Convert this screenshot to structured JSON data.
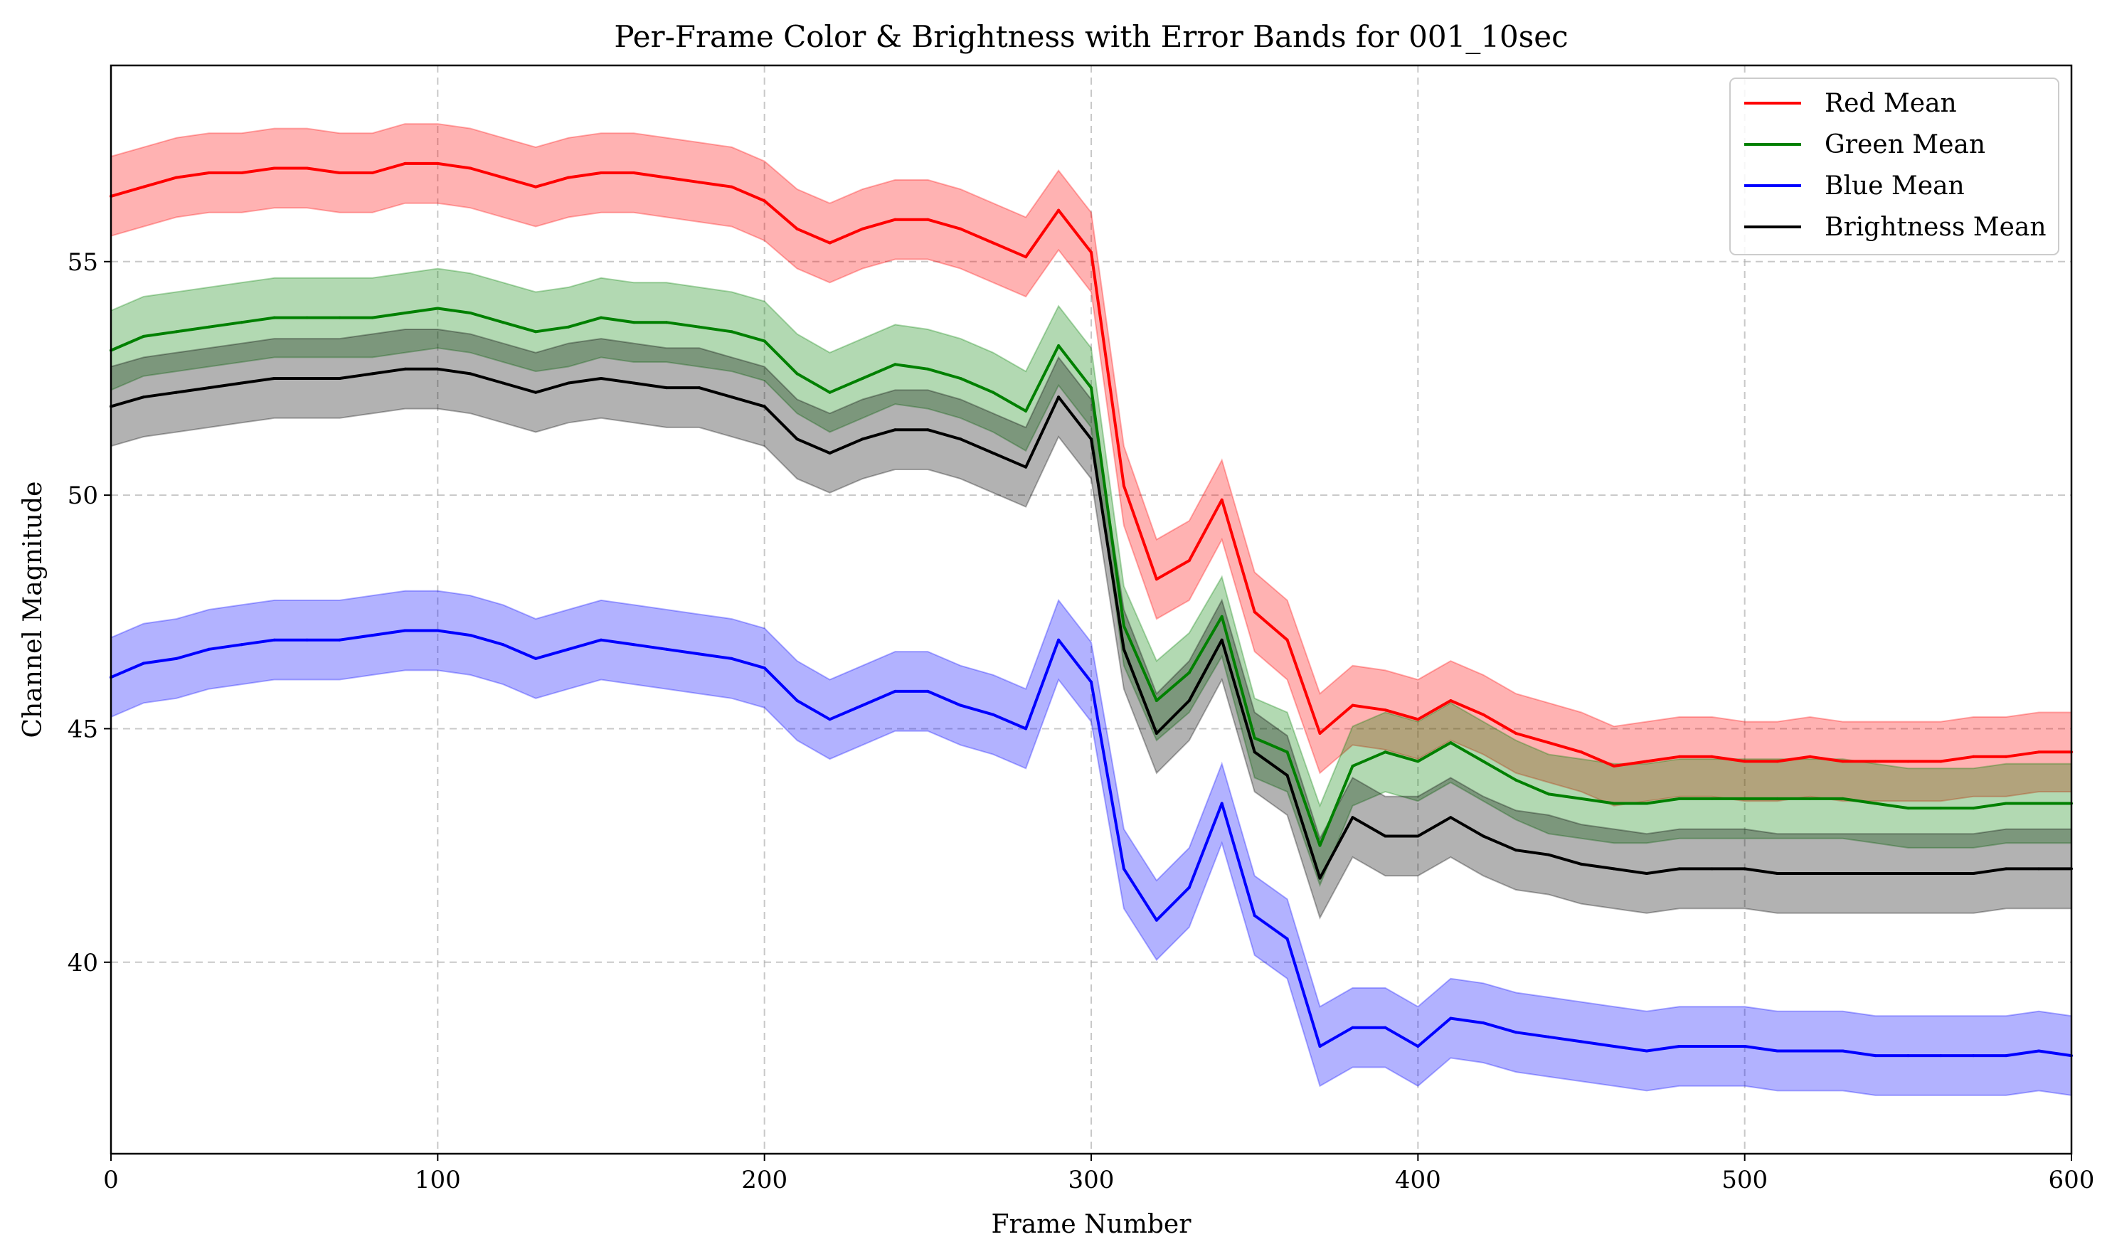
{
  "chart_data": {
    "type": "line",
    "title": "Per-Frame Color & Brightness with Error Bands for 001_10sec",
    "xlabel": "Frame Number",
    "ylabel": "Channel Magnitude",
    "xlim": [
      0,
      600
    ],
    "ylim": [
      35.9,
      59.2
    ],
    "x_ticks": [
      0,
      100,
      200,
      300,
      400,
      500,
      600
    ],
    "y_ticks": [
      40,
      45,
      50,
      55
    ],
    "grid": true,
    "legend_position": "top-right",
    "error_band_halfwidth": 0.85,
    "x": [
      0,
      10,
      20,
      30,
      40,
      50,
      60,
      70,
      80,
      90,
      100,
      110,
      120,
      130,
      140,
      150,
      160,
      170,
      180,
      190,
      200,
      210,
      220,
      230,
      240,
      250,
      260,
      270,
      280,
      290,
      300,
      310,
      320,
      330,
      340,
      350,
      360,
      370,
      380,
      390,
      400,
      410,
      420,
      430,
      440,
      450,
      460,
      470,
      480,
      490,
      500,
      510,
      520,
      530,
      540,
      550,
      560,
      570,
      580,
      590,
      600
    ],
    "series": [
      {
        "name": "Red Mean",
        "color": "#ff0000",
        "values": [
          56.4,
          56.6,
          56.8,
          56.9,
          56.9,
          57.0,
          57.0,
          56.9,
          56.9,
          57.1,
          57.1,
          57.0,
          56.8,
          56.6,
          56.8,
          56.9,
          56.9,
          56.8,
          56.7,
          56.6,
          56.3,
          55.7,
          55.4,
          55.7,
          55.9,
          55.9,
          55.7,
          55.4,
          55.1,
          56.1,
          55.2,
          50.2,
          48.2,
          48.6,
          49.9,
          47.5,
          46.9,
          44.9,
          45.5,
          45.4,
          45.2,
          45.6,
          45.3,
          44.9,
          44.7,
          44.5,
          44.2,
          44.3,
          44.4,
          44.4,
          44.3,
          44.3,
          44.4,
          44.3,
          44.3,
          44.3,
          44.3,
          44.4,
          44.4,
          44.5,
          44.5
        ]
      },
      {
        "name": "Green Mean",
        "color": "#008000",
        "values": [
          53.1,
          53.4,
          53.5,
          53.6,
          53.7,
          53.8,
          53.8,
          53.8,
          53.8,
          53.9,
          54.0,
          53.9,
          53.7,
          53.5,
          53.6,
          53.8,
          53.7,
          53.7,
          53.6,
          53.5,
          53.3,
          52.6,
          52.2,
          52.5,
          52.8,
          52.7,
          52.5,
          52.2,
          51.8,
          53.2,
          52.3,
          47.2,
          45.6,
          46.2,
          47.4,
          44.8,
          44.5,
          42.5,
          44.2,
          44.5,
          44.3,
          44.7,
          44.3,
          43.9,
          43.6,
          43.5,
          43.4,
          43.4,
          43.5,
          43.5,
          43.5,
          43.5,
          43.5,
          43.5,
          43.4,
          43.3,
          43.3,
          43.3,
          43.4,
          43.4,
          43.4
        ]
      },
      {
        "name": "Blue Mean",
        "color": "#0000ff",
        "values": [
          46.1,
          46.4,
          46.5,
          46.7,
          46.8,
          46.9,
          46.9,
          46.9,
          47.0,
          47.1,
          47.1,
          47.0,
          46.8,
          46.5,
          46.7,
          46.9,
          46.8,
          46.7,
          46.6,
          46.5,
          46.3,
          45.6,
          45.2,
          45.5,
          45.8,
          45.8,
          45.5,
          45.3,
          45.0,
          46.9,
          46.0,
          42.0,
          40.9,
          41.6,
          43.4,
          41.0,
          40.5,
          38.2,
          38.6,
          38.6,
          38.2,
          38.8,
          38.7,
          38.5,
          38.4,
          38.3,
          38.2,
          38.1,
          38.2,
          38.2,
          38.2,
          38.1,
          38.1,
          38.1,
          38.0,
          38.0,
          38.0,
          38.0,
          38.0,
          38.1,
          38.0
        ]
      },
      {
        "name": "Brightness Mean",
        "color": "#000000",
        "values": [
          51.9,
          52.1,
          52.2,
          52.3,
          52.4,
          52.5,
          52.5,
          52.5,
          52.6,
          52.7,
          52.7,
          52.6,
          52.4,
          52.2,
          52.4,
          52.5,
          52.4,
          52.3,
          52.3,
          52.1,
          51.9,
          51.2,
          50.9,
          51.2,
          51.4,
          51.4,
          51.2,
          50.9,
          50.6,
          52.1,
          51.2,
          46.7,
          44.9,
          45.6,
          46.9,
          44.5,
          44.0,
          41.8,
          43.1,
          42.7,
          42.7,
          43.1,
          42.7,
          42.4,
          42.3,
          42.1,
          42.0,
          41.9,
          42.0,
          42.0,
          42.0,
          41.9,
          41.9,
          41.9,
          41.9,
          41.9,
          41.9,
          41.9,
          42.0,
          42.0,
          42.0
        ]
      }
    ]
  }
}
